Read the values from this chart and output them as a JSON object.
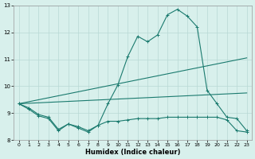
{
  "xlabel": "Humidex (Indice chaleur)",
  "ylabel": "",
  "xlim": [
    -0.5,
    23.5
  ],
  "ylim": [
    8,
    13
  ],
  "xticks": [
    0,
    1,
    2,
    3,
    4,
    5,
    6,
    7,
    8,
    9,
    10,
    11,
    12,
    13,
    14,
    15,
    16,
    17,
    18,
    19,
    20,
    21,
    22,
    23
  ],
  "yticks": [
    8,
    9,
    10,
    11,
    12,
    13
  ],
  "bg_color": "#d8f0ec",
  "line_color": "#1a7a6e",
  "grid_color": "#b8d8d4",
  "lines": [
    {
      "x": [
        0,
        1,
        2,
        3,
        4,
        5,
        6,
        7,
        8,
        9,
        10,
        11,
        12,
        13,
        14,
        15,
        16,
        17,
        18,
        19,
        20,
        21,
        22,
        23
      ],
      "y": [
        9.35,
        9.2,
        8.95,
        8.85,
        8.4,
        8.6,
        8.5,
        8.35,
        8.55,
        9.35,
        10.05,
        11.1,
        11.85,
        11.65,
        11.9,
        12.65,
        12.85,
        12.6,
        12.2,
        9.85,
        9.35,
        8.85,
        8.8,
        8.35
      ],
      "marker": "+"
    },
    {
      "x": [
        0,
        1,
        2,
        3,
        4,
        5,
        6,
        7,
        8,
        9,
        10,
        11,
        12,
        13,
        14,
        15,
        16,
        17,
        18,
        19,
        20,
        21,
        22,
        23
      ],
      "y": [
        9.35,
        9.15,
        8.9,
        8.8,
        8.35,
        8.6,
        8.45,
        8.3,
        8.55,
        8.7,
        8.7,
        8.75,
        8.8,
        8.8,
        8.8,
        8.85,
        8.85,
        8.85,
        8.85,
        8.85,
        8.85,
        8.75,
        8.35,
        8.3
      ],
      "marker": "+"
    },
    {
      "x": [
        0,
        23
      ],
      "y": [
        9.35,
        11.05
      ],
      "marker": null
    },
    {
      "x": [
        0,
        23
      ],
      "y": [
        9.35,
        9.75
      ],
      "marker": null
    }
  ]
}
